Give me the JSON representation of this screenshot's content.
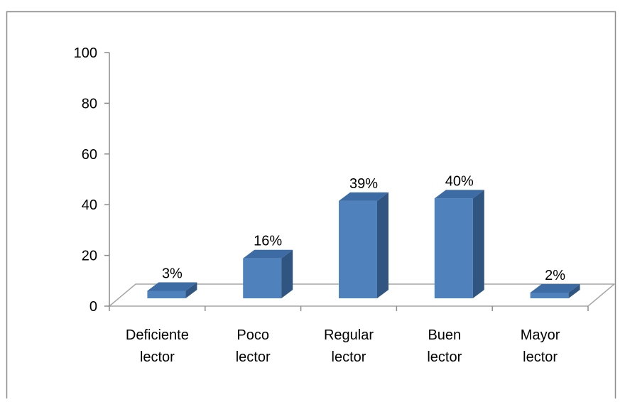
{
  "chart_data": {
    "type": "bar",
    "style": "3d-column",
    "categories": [
      [
        "Deficiente",
        "lector"
      ],
      [
        "Poco",
        "lector"
      ],
      [
        "Regular",
        "lector"
      ],
      [
        "Buen",
        "lector"
      ],
      [
        "Mayor",
        "lector"
      ]
    ],
    "series": [
      {
        "values": [
          3,
          16,
          39,
          40,
          2
        ],
        "labels": [
          "3%",
          "16%",
          "39%",
          "40%",
          "2%"
        ]
      }
    ],
    "ylim": [
      0,
      100
    ],
    "yticks": [
      "0",
      "20",
      "40",
      "60",
      "80",
      "100"
    ],
    "grid": false,
    "legend": "none",
    "colors": {
      "front": "#4f81bd",
      "side": "#2f5580",
      "top": "#3d6ba3",
      "floor": "#a6a6a6"
    }
  }
}
